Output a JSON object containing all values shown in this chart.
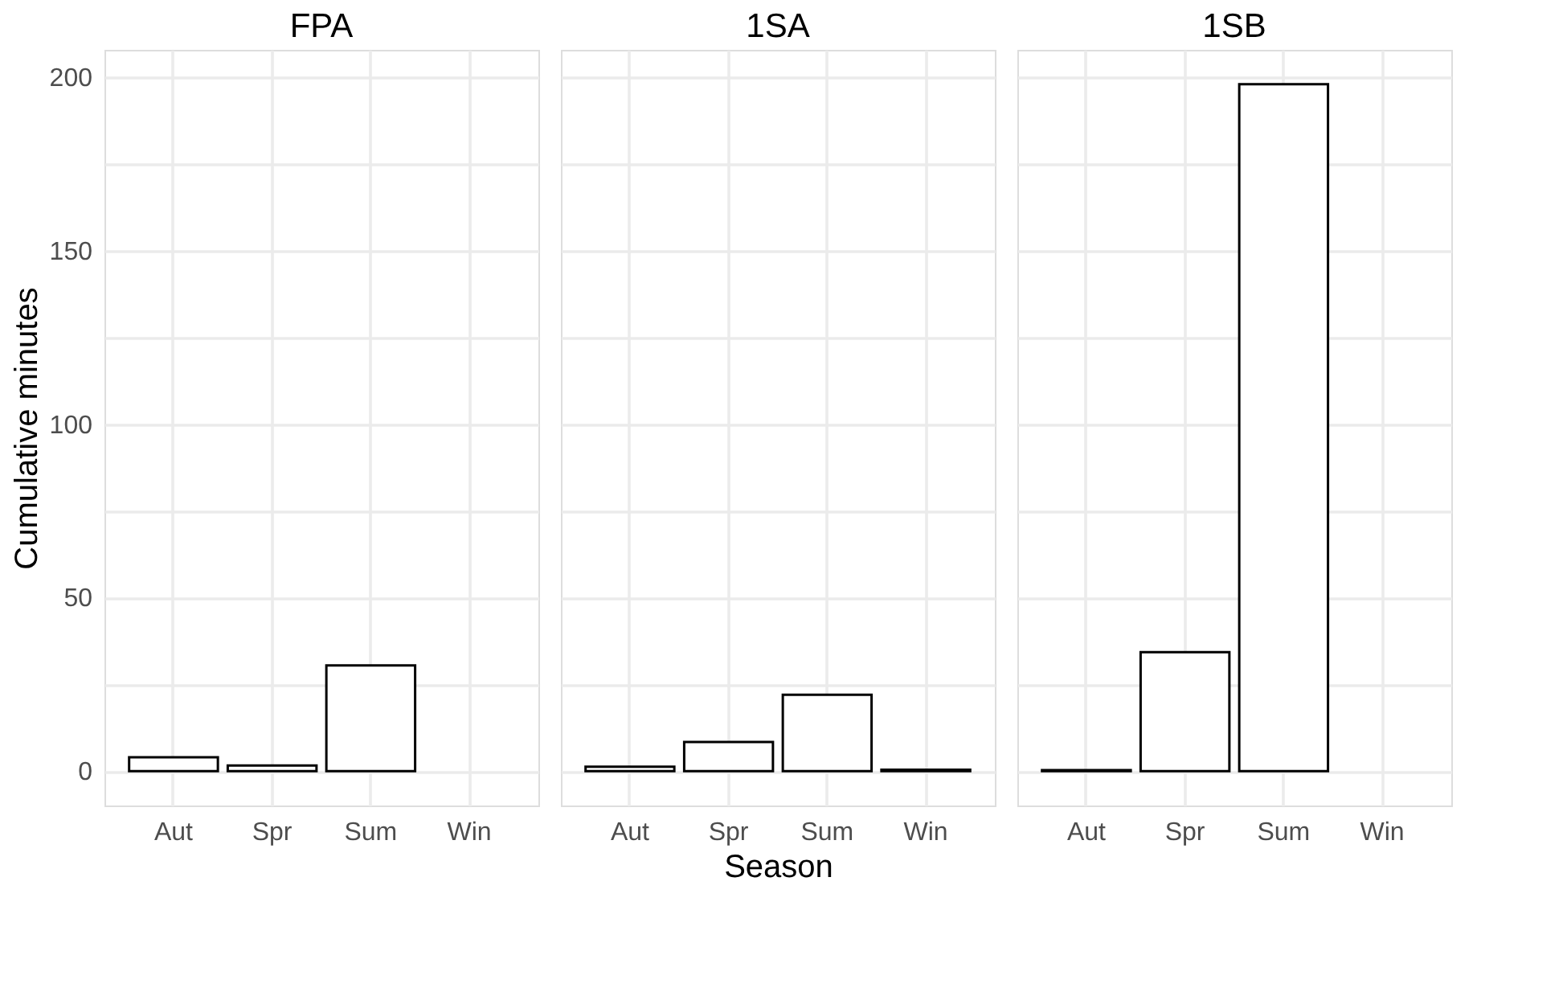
{
  "chart_data": [
    {
      "type": "bar",
      "title": "FPA",
      "ylabel": "Cumulative minutes",
      "categories": [
        "Aut",
        "Spr",
        "Sum",
        "Win"
      ],
      "values": [
        4.0,
        1.6,
        30.5,
        null
      ],
      "color": "#ffffff",
      "ylim": [
        -9.9,
        207.9
      ],
      "yticks": [
        0,
        {
          "value": 25,
          "label": null
        },
        50,
        {
          "value": 75,
          "label": null
        },
        100,
        {
          "value": 125,
          "label": null
        },
        150,
        {
          "value": 175,
          "label": null
        },
        200
      ],
      "grid": true
    },
    {
      "type": "bar",
      "title": "1SA",
      "xlabel": "Season",
      "categories": [
        "Aut",
        "Spr",
        "Sum",
        "Win"
      ],
      "values": [
        1.3,
        8.4,
        22,
        0.4
      ],
      "color": "#ffffff",
      "ylim": [
        -9.9,
        207.9
      ],
      "yticks": [
        0,
        {
          "value": 25,
          "label": null
        },
        50,
        {
          "value": 75,
          "label": null
        },
        100,
        {
          "value": 125,
          "label": null
        },
        150,
        {
          "value": 175,
          "label": null
        },
        200
      ],
      "grid": true,
      "tick_labels": "x"
    },
    {
      "type": "bar",
      "title": "1SB",
      "categories": [
        "Aut",
        "Spr",
        "Sum",
        "Win"
      ],
      "values": [
        0.3,
        34.3,
        198,
        null
      ],
      "color": "#ffffff",
      "ylim": [
        -9.9,
        207.9
      ],
      "yticks": [
        0,
        {
          "value": 25,
          "label": null
        },
        50,
        {
          "value": 75,
          "label": null
        },
        100,
        {
          "value": 125,
          "label": null
        },
        150,
        {
          "value": 175,
          "label": null
        },
        200
      ],
      "grid": true,
      "tick_labels": "x"
    }
  ]
}
